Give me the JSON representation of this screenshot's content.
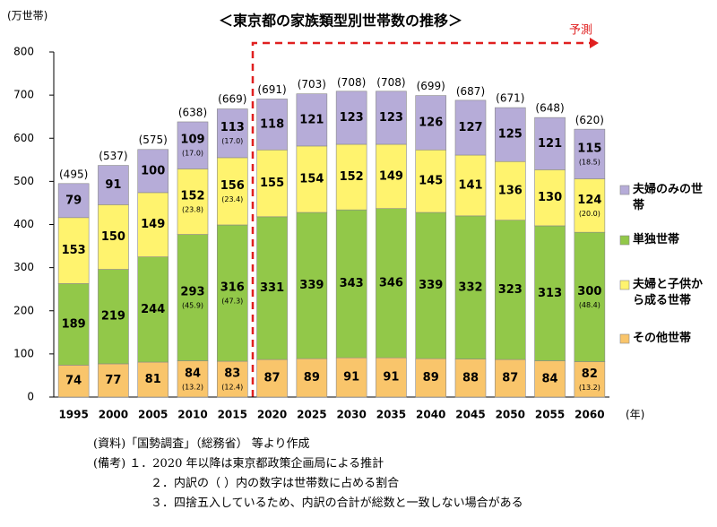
{
  "chart_data": {
    "type": "stacked_bar",
    "title": "＜東京都の家族類型別世帯数の推移＞",
    "y_label": "(万世帯)",
    "x_label": "(年)",
    "annotation": "予測",
    "categories": [
      "1995",
      "2000",
      "2005",
      "2010",
      "2015",
      "2020",
      "2025",
      "2030",
      "2035",
      "2040",
      "2045",
      "2050",
      "2055",
      "2060"
    ],
    "series": [
      {
        "name": "その他世帯",
        "color": "#f9c56b",
        "values": [
          74,
          77,
          81,
          84,
          83,
          87,
          89,
          91,
          91,
          89,
          88,
          87,
          84,
          82
        ],
        "share_labels": [
          null,
          null,
          null,
          "(13.2)",
          "(12.4)",
          null,
          null,
          null,
          null,
          null,
          null,
          null,
          null,
          "(13.2)"
        ]
      },
      {
        "name": "単独世帯",
        "color": "#92c849",
        "values": [
          189,
          219,
          244,
          293,
          316,
          331,
          339,
          343,
          346,
          339,
          332,
          323,
          313,
          300
        ],
        "share_labels": [
          null,
          null,
          null,
          "(45.9)",
          "(47.3)",
          null,
          null,
          null,
          null,
          null,
          null,
          null,
          null,
          "(48.4)"
        ]
      },
      {
        "name": "夫婦と子供から成る世帯",
        "color": "#fff36e",
        "values": [
          153,
          150,
          149,
          152,
          156,
          155,
          154,
          152,
          149,
          145,
          141,
          136,
          130,
          124
        ],
        "share_labels": [
          null,
          null,
          null,
          "(23.8)",
          "(23.4)",
          null,
          null,
          null,
          null,
          null,
          null,
          null,
          null,
          "(20.0)"
        ]
      },
      {
        "name": "夫婦のみの世帯",
        "color": "#b6acd8",
        "values": [
          79,
          91,
          100,
          109,
          113,
          118,
          121,
          123,
          123,
          126,
          127,
          125,
          121,
          115
        ],
        "share_labels": [
          null,
          null,
          null,
          "(17.0)",
          "(17.0)",
          null,
          null,
          null,
          null,
          null,
          null,
          null,
          null,
          "(18.5)"
        ]
      }
    ],
    "totals": {
      "values": [
        495,
        537,
        575,
        638,
        669,
        691,
        703,
        708,
        708,
        699,
        687,
        671,
        648,
        620
      ],
      "value_labels": [
        "(495)",
        "(537)",
        "(575)",
        "(638)",
        "(669)",
        "(691)",
        "(703)",
        "(708)",
        "(708)",
        "(699)",
        "(687)",
        "(671)",
        "(648)",
        "(620)"
      ]
    },
    "ylim": [
      0,
      800
    ],
    "yticks": [
      0,
      100,
      200,
      300,
      400,
      500,
      600,
      700,
      800
    ],
    "legend": "right",
    "notes": [
      "(資料)「国勢調査」（総務省） 等より作成",
      "(備考) １．2020 年以降は東京都政策企画局による推計",
      "２．内訳の（ ）内の数字は世帯数に占める割合",
      "３．四捨五入しているため、内訳の合計が総数と一致しない場合がある"
    ]
  }
}
